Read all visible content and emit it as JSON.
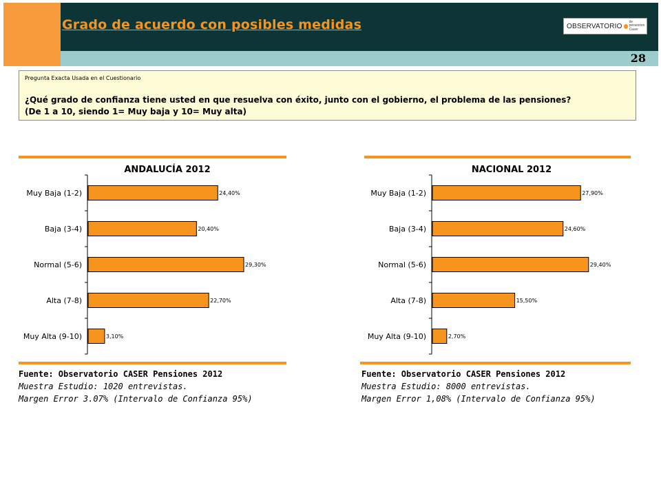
{
  "header": {
    "title": "Grado de acuerdo con posibles medidas",
    "logo_text": "OBSERVATORIO",
    "logo_sub_1": "de pensiones",
    "logo_sub_2": "Caser",
    "page_number": "28",
    "colors": {
      "title_bg": "#0d3535",
      "accent": "#f79a3c",
      "subtitle_bg": "#9ccccc",
      "title_text": "#f7941d"
    }
  },
  "question": {
    "label": "Pregunta Exacta Usada en el Cuestionario",
    "line1": "¿Qué grado de confianza tiene usted en que resuelva con éxito, junto con el gobierno, el problema de las pensiones?",
    "line2": "(De 1 a 10, siendo 1= Muy baja  y 10= Muy alta)"
  },
  "chart_data": [
    {
      "type": "bar",
      "orientation": "horizontal",
      "title": "ANDALUCÍA 2012",
      "categories": [
        "Muy Baja (1-2)",
        "Baja (3-4)",
        "Normal (5-6)",
        "Alta (7-8)",
        "Muy Alta (9-10)"
      ],
      "values": [
        24.4,
        20.4,
        29.3,
        22.7,
        3.1
      ],
      "labels": [
        "24,40%",
        "20,40%",
        "29,30%",
        "22,70%",
        "3,10%"
      ],
      "xlim": [
        0,
        35
      ],
      "bar_color": "#f7941d",
      "grid": false
    },
    {
      "type": "bar",
      "orientation": "horizontal",
      "title": "NACIONAL 2012",
      "categories": [
        "Muy Baja (1-2)",
        "Baja (3-4)",
        "Normal (5-6)",
        "Alta (7-8)",
        "Muy Alta (9-10)"
      ],
      "values": [
        27.9,
        24.6,
        29.4,
        15.5,
        2.7
      ],
      "labels": [
        "27,90%",
        "24,60%",
        "29,40%",
        "15,50%",
        "2,70%"
      ],
      "xlim": [
        0,
        35
      ],
      "bar_color": "#f7941d",
      "grid": false
    }
  ],
  "sources": [
    {
      "line1": "Fuente: Observatorio CASER Pensiones 2012",
      "line2": "Muestra Estudio: 1020 entrevistas.",
      "line3": "Margen Error 3.07% (Intervalo de Confianza 95%)"
    },
    {
      "line1": "Fuente: Observatorio CASER Pensiones 2012",
      "line2": "Muestra Estudio: 8000 entrevistas.",
      "line3": "Margen Error 1,08% (Intervalo de Confianza 95%)"
    }
  ]
}
